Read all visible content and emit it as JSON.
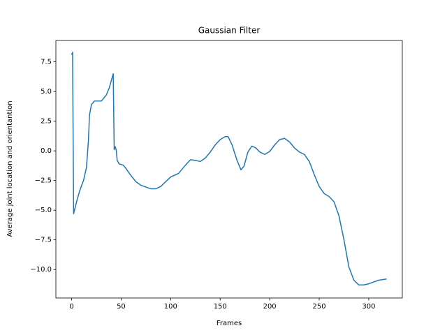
{
  "chart_data": {
    "type": "line",
    "title": "Gaussian Filter",
    "x_label": "Frames",
    "y_label": "Average joint location and orientantion",
    "x": [
      0,
      0.5,
      1,
      2,
      5,
      8,
      12,
      15,
      17,
      18,
      20,
      23,
      30,
      35,
      38,
      41,
      42,
      43,
      44,
      45,
      46,
      48,
      52,
      55,
      60,
      65,
      70,
      80,
      85,
      90,
      95,
      100,
      108,
      115,
      120,
      125,
      130,
      135,
      140,
      145,
      150,
      155,
      158,
      162,
      167,
      171,
      174,
      178,
      182,
      186,
      190,
      195,
      200,
      205,
      210,
      215,
      220,
      225,
      230,
      235,
      240,
      245,
      250,
      255,
      260,
      265,
      270,
      275,
      280,
      285,
      290,
      295,
      300,
      310,
      318
    ],
    "series": [
      {
        "name": "Gaussian Filter",
        "color": "#1f77b4",
        "values": [
          8.1,
          8.2,
          8.3,
          -5.3,
          -4.3,
          -3.4,
          -2.5,
          -1.4,
          0.9,
          3.0,
          3.9,
          4.2,
          4.2,
          4.7,
          5.3,
          6.2,
          6.5,
          0.1,
          0.35,
          0.1,
          -0.8,
          -1.1,
          -1.2,
          -1.5,
          -2.1,
          -2.6,
          -2.9,
          -3.2,
          -3.2,
          -3.0,
          -2.6,
          -2.2,
          -1.9,
          -1.2,
          -0.75,
          -0.8,
          -0.9,
          -0.6,
          -0.1,
          0.5,
          0.95,
          1.2,
          1.2,
          0.5,
          -0.8,
          -1.6,
          -1.3,
          -0.1,
          0.4,
          0.25,
          -0.1,
          -0.3,
          -0.05,
          0.5,
          0.95,
          1.05,
          0.75,
          0.25,
          -0.1,
          -0.3,
          -0.9,
          -2.0,
          -3.0,
          -3.6,
          -3.85,
          -4.3,
          -5.5,
          -7.5,
          -9.8,
          -10.9,
          -11.3,
          -11.3,
          -11.2,
          -10.9,
          -10.8
        ]
      }
    ],
    "xlim": [
      -15.9,
      333.9
    ],
    "ylim": [
      -12.4,
      9.3
    ],
    "xticks": [
      0,
      50,
      100,
      150,
      200,
      250,
      300
    ],
    "yticks": [
      {
        "value": -10,
        "label": "−10.0"
      },
      {
        "value": -7.5,
        "label": "−7.5"
      },
      {
        "value": -5,
        "label": "−5.0"
      },
      {
        "value": -2.5,
        "label": "−2.5"
      },
      {
        "value": 0,
        "label": "0.0"
      },
      2.5,
      {
        "value": 5,
        "label": "5.0"
      },
      7.5
    ],
    "grid": false
  }
}
